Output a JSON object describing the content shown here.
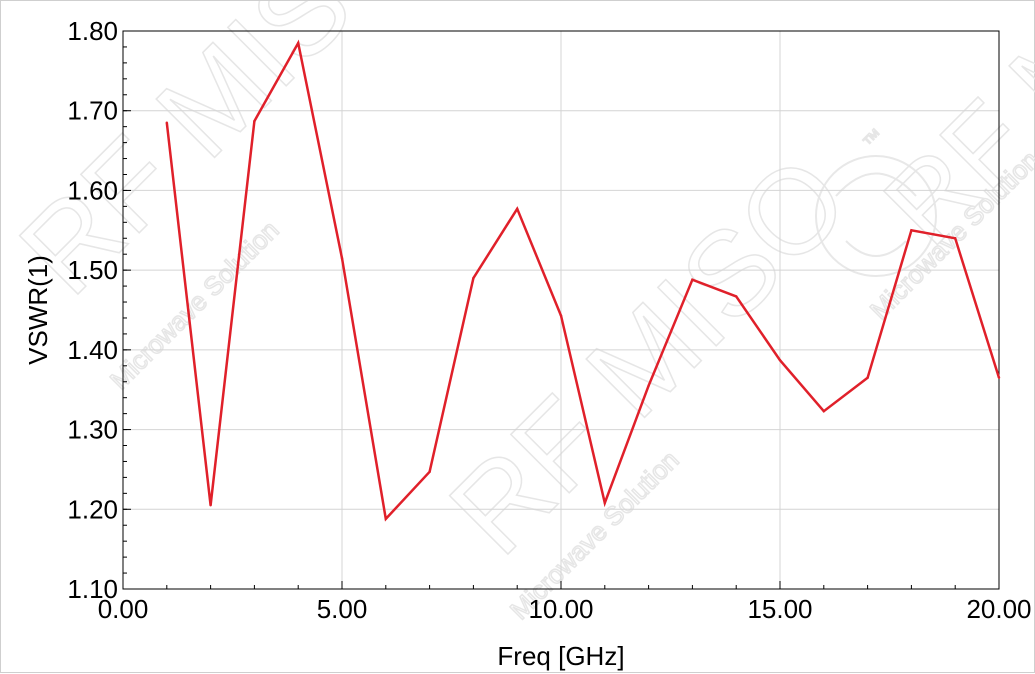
{
  "chart_data": {
    "type": "line",
    "title": "",
    "xlabel": "Freq [GHz]",
    "ylabel": "VSWR(1)",
    "xlim": [
      0,
      20
    ],
    "ylim": [
      1.1,
      1.8
    ],
    "x_ticks": [
      "0.00",
      "5.00",
      "10.00",
      "15.00",
      "20.00"
    ],
    "y_ticks": [
      "1.10",
      "1.20",
      "1.30",
      "1.40",
      "1.50",
      "1.60",
      "1.70",
      "1.80"
    ],
    "grid": true,
    "series": [
      {
        "name": "",
        "color": "#e0202a",
        "x": [
          1,
          2,
          3,
          4,
          5,
          6,
          7,
          8,
          9,
          10,
          11,
          12,
          13,
          14,
          15,
          16,
          17,
          18,
          19,
          20
        ],
        "y": [
          1.685,
          1.205,
          1.687,
          1.785,
          1.515,
          1.188,
          1.247,
          1.49,
          1.577,
          1.443,
          1.208,
          1.355,
          1.488,
          1.467,
          1.387,
          1.323,
          1.365,
          1.55,
          1.54,
          1.365
        ]
      }
    ]
  },
  "watermark": {
    "brand": "RF MISO",
    "tagline": "Microwave Solution",
    "mark": "™"
  }
}
